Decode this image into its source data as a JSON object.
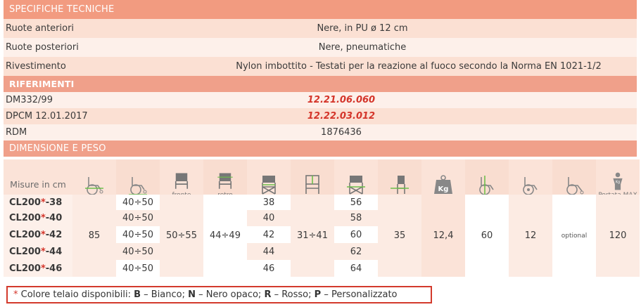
{
  "specs": {
    "header": "SPECIFICHE TECNICHE",
    "rows": [
      {
        "label": "Ruote anteriori",
        "value": "Nere, in PU ø 12 cm"
      },
      {
        "label": "Ruote posteriori",
        "value": "Nere, pneumatiche"
      },
      {
        "label": "Rivestimento",
        "value": "Nylon imbottito - Testati per la reazione al fuoco secondo la Norma EN 1021-1/2"
      }
    ]
  },
  "refs": {
    "header": "RIFERIMENTI",
    "rows": [
      {
        "label": "DM332/99",
        "value": "12.21.06.060"
      },
      {
        "label": "DPCM 12.01.2017",
        "value": "12.22.03.012"
      },
      {
        "label": "RDM",
        "value": "1876436"
      }
    ]
  },
  "dims": {
    "header": "DIMENSIONE E PESO",
    "first_col": "Misure in cm",
    "captions": {
      "fronte": "fronte",
      "retro": "retro",
      "portata": "Portata MAX"
    },
    "icons": [
      "wheelchair-width-icon",
      "wheelchair-length-icon",
      "chair-front-icon",
      "chair-back-icon",
      "seat-width-icon",
      "backrest-width-icon",
      "seat-depth-icon",
      "seat-height-icon",
      "weight-icon",
      "wheelchair-height-icon",
      "wheelchair-wheel-icon",
      "wheelchair-option-icon",
      "max-load-icon"
    ],
    "models": [
      "CL200",
      "CL200",
      "CL200",
      "CL200",
      "CL200"
    ],
    "suffixes": [
      "-38",
      "-40",
      "-42",
      "-44",
      "-46"
    ],
    "star": "*",
    "col_width_all": "85",
    "col_length": [
      "40÷50",
      "40÷50",
      "40÷50",
      "40÷50",
      "40÷50"
    ],
    "col_front": "50÷55",
    "col_back": "44÷49",
    "col_seat": [
      "38",
      "40",
      "42",
      "44",
      "46"
    ],
    "col_backrest": "31÷41",
    "col_depth": [
      "56",
      "58",
      "60",
      "62",
      "64"
    ],
    "col_height": "35",
    "col_weight": "12,4",
    "col_chair_h": "60",
    "col_wheel": "12",
    "col_option": "optional",
    "col_max": "120"
  },
  "note": {
    "star": "*",
    "text1": " Colore telaio disponibili: ",
    "B": "B",
    "b_txt": " – Bianco; ",
    "N": "N",
    "n_txt": " – Nero opaco; ",
    "R": "R",
    "r_txt": " – Rosso; ",
    "P": "P",
    "p_txt": " – Personalizzato"
  },
  "colors": {
    "header": "#f29b80",
    "accent_red": "#d4352a",
    "icon_green": "#6dbf4a",
    "icon_gray": "#777777"
  }
}
